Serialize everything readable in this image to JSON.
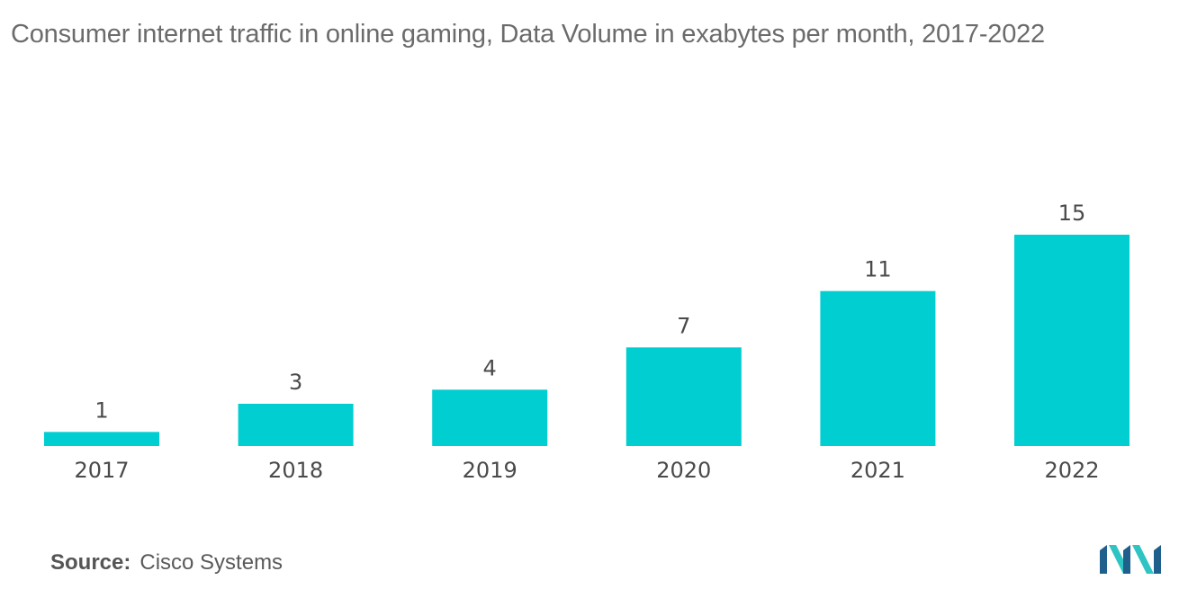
{
  "title": "Consumer internet traffic in online gaming, Data Volume in exabytes per month, 2017-2022",
  "source": {
    "label": "Source:",
    "value": "Cisco Systems"
  },
  "colors": {
    "bar": "#00CED1",
    "text": "#4a4a4a",
    "title": "#6b6b6b",
    "logo_dark": "#1f5f8b",
    "logo_light": "#2ec4c4"
  },
  "logo": {
    "icon": "mordor-intelligence-logo-icon"
  },
  "chart_data": {
    "type": "bar",
    "title": "Consumer internet traffic in online gaming, Data Volume in exabytes per month, 2017-2022",
    "categories": [
      "2017",
      "2018",
      "2019",
      "2020",
      "2021",
      "2022"
    ],
    "values": [
      1,
      3,
      4,
      7,
      11,
      15
    ],
    "data_labels": [
      "1",
      "3",
      "4",
      "7",
      "11",
      "15"
    ],
    "xlabel": "",
    "ylabel": "",
    "ylim": [
      0,
      15
    ],
    "grid": false,
    "legend": "none"
  }
}
